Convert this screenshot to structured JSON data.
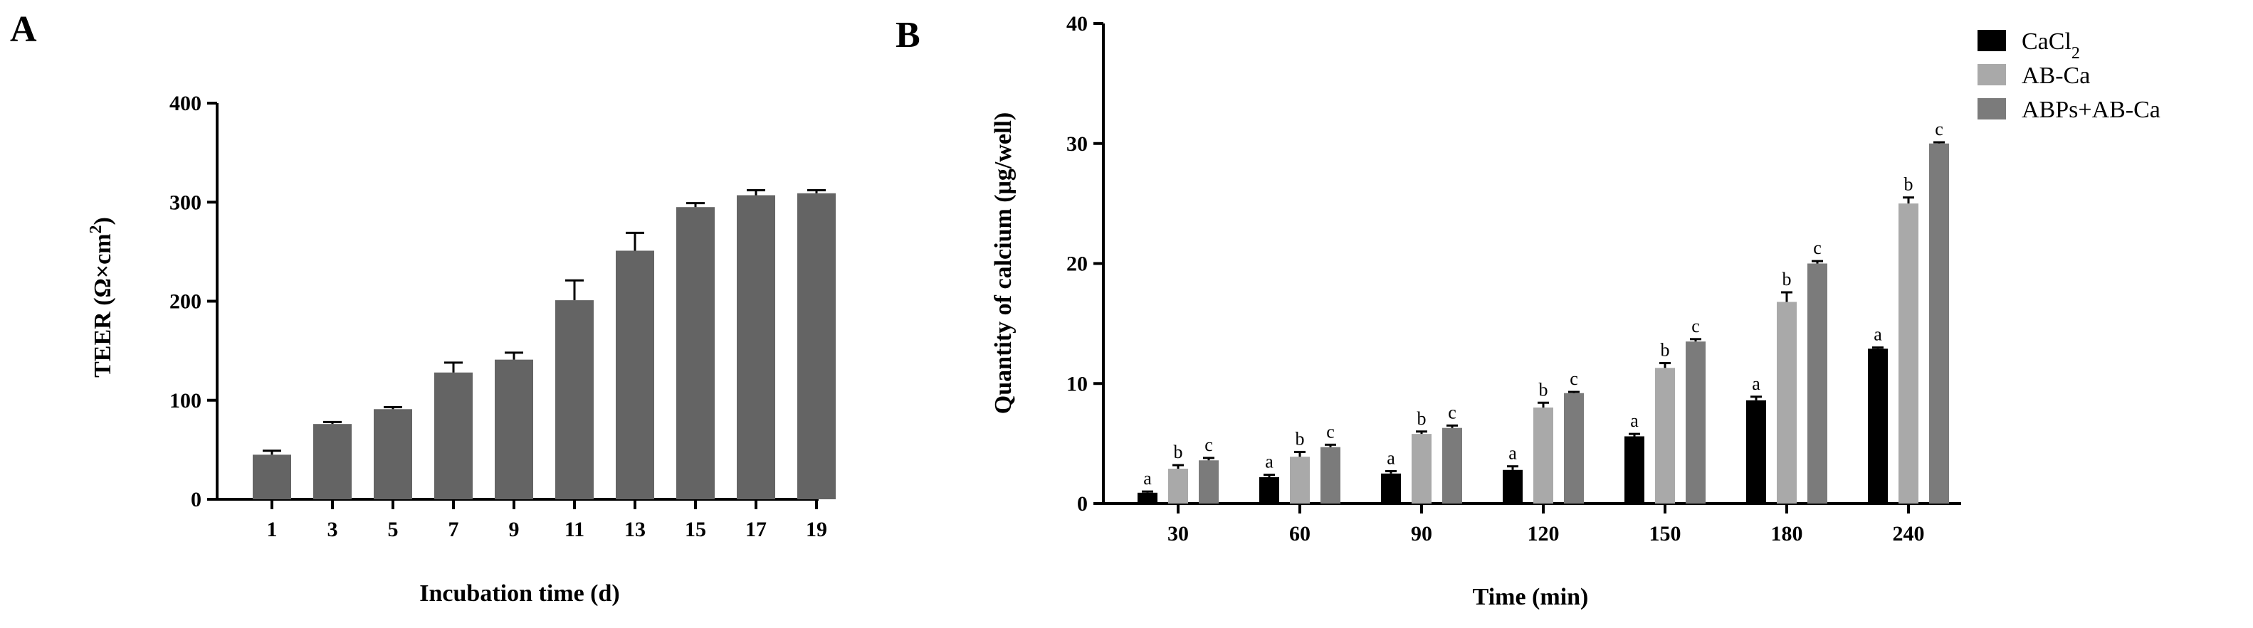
{
  "panels": {
    "a_letter": "A",
    "b_letter": "B"
  },
  "chart_data": [
    {
      "type": "bar",
      "panel": "A",
      "xlabel": "Incubation time (d)",
      "ylabel_main": "TEER (Ω×cm",
      "ylabel_sup": "2",
      "ylabel_close": ")",
      "categories": [
        "1",
        "3",
        "5",
        "7",
        "9",
        "11",
        "13",
        "15",
        "17",
        "19"
      ],
      "values": [
        45,
        76,
        91,
        128,
        141,
        201,
        251,
        295,
        307,
        309
      ],
      "errors": [
        4,
        2,
        2,
        10,
        7,
        20,
        18,
        4,
        5,
        3
      ],
      "ylim": [
        0,
        400
      ],
      "yticks": [
        "0",
        "100",
        "200",
        "300",
        "400"
      ],
      "color": "#646464"
    },
    {
      "type": "bar",
      "panel": "B",
      "xlabel": "Time (min)",
      "ylabel": "Quantity of calcium (μg/well)",
      "categories": [
        "30",
        "60",
        "90",
        "120",
        "150",
        "180",
        "240"
      ],
      "ylim": [
        0,
        40
      ],
      "yticks": [
        "0",
        "10",
        "20",
        "30",
        "40"
      ],
      "series": [
        {
          "name": "CaCl",
          "name_sub": "2",
          "color": "#000000",
          "values": [
            0.9,
            2.2,
            2.5,
            2.8,
            5.6,
            8.6,
            12.9
          ],
          "errors": [
            0.1,
            0.2,
            0.2,
            0.3,
            0.2,
            0.3,
            0.1
          ],
          "letters": [
            "a",
            "a",
            "a",
            "a",
            "a",
            "a",
            "a"
          ]
        },
        {
          "name": "AB-Ca",
          "color": "#a9a9a9",
          "values": [
            2.9,
            3.9,
            5.8,
            8.0,
            11.3,
            16.8,
            25.0
          ],
          "errors": [
            0.3,
            0.4,
            0.2,
            0.4,
            0.4,
            0.8,
            0.5
          ],
          "letters": [
            "b",
            "b",
            "b",
            "b",
            "b",
            "b",
            "b"
          ]
        },
        {
          "name": "ABPs+AB-Ca",
          "color": "#7b7b7b",
          "values": [
            3.6,
            4.7,
            6.3,
            9.2,
            13.5,
            20.0,
            30.0
          ],
          "errors": [
            0.2,
            0.2,
            0.2,
            0.1,
            0.2,
            0.2,
            0.1
          ],
          "letters": [
            "c",
            "c",
            "c",
            "c",
            "c",
            "c",
            "c"
          ]
        }
      ]
    }
  ]
}
